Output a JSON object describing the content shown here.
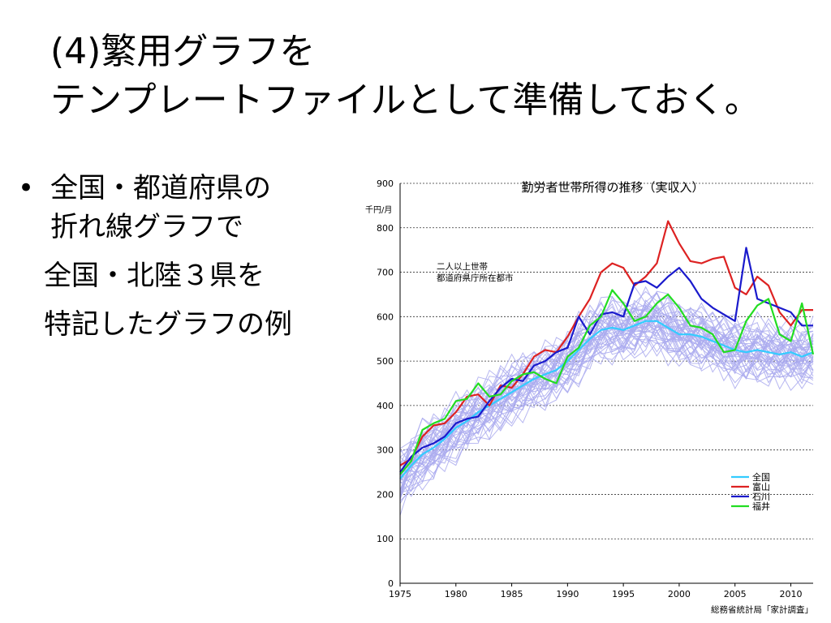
{
  "slide": {
    "title_line1": "(4)繁用グラフを",
    "title_line2": "テンプレートファイルとして準備しておく。",
    "bullet_symbol": "•",
    "bullet_line1": "全国・都道府県の",
    "bullet_line2": "折れ線グラフで",
    "sub_line1": "全国・北陸３県を",
    "sub_line2": "特記したグラフの例"
  },
  "chart_data": {
    "type": "line",
    "title": "勤労者世帯所得の推移（実収入）",
    "ylabel": "千円/月",
    "annotation_line1": "二人以上世帯",
    "annotation_line2": "都道府県庁所在都市",
    "source": "総務省統計局「家計調査」",
    "xlim": [
      1975,
      2012
    ],
    "ylim": [
      0,
      900
    ],
    "x_ticks": [
      1975,
      1980,
      1985,
      1990,
      1995,
      2000,
      2005,
      2010
    ],
    "y_ticks": [
      0,
      100,
      200,
      300,
      400,
      500,
      600,
      700,
      800,
      900
    ],
    "grid": "horizontal dotted",
    "legend_position": "bottom-right",
    "background_color": "#aaaaee",
    "background_series_count": 44,
    "x": [
      1975,
      1976,
      1977,
      1978,
      1979,
      1980,
      1981,
      1982,
      1983,
      1984,
      1985,
      1986,
      1987,
      1988,
      1989,
      1990,
      1991,
      1992,
      1993,
      1994,
      1995,
      1996,
      1997,
      1998,
      1999,
      2000,
      2001,
      2002,
      2003,
      2004,
      2005,
      2006,
      2007,
      2008,
      2009,
      2010,
      2011,
      2012
    ],
    "series": [
      {
        "name": "全国",
        "color": "#33ccff",
        "values": [
          235,
          265,
          290,
          305,
          325,
          350,
          365,
          385,
          400,
          415,
          430,
          445,
          460,
          470,
          480,
          500,
          525,
          550,
          570,
          575,
          570,
          580,
          590,
          590,
          575,
          560,
          560,
          555,
          545,
          535,
          525,
          520,
          525,
          520,
          515,
          520,
          510,
          520
        ]
      },
      {
        "name": "富山",
        "color": "#dd2222",
        "values": [
          265,
          280,
          330,
          355,
          360,
          385,
          420,
          425,
          400,
          445,
          440,
          470,
          510,
          525,
          520,
          555,
          600,
          640,
          700,
          720,
          710,
          670,
          690,
          720,
          815,
          765,
          725,
          720,
          730,
          735,
          665,
          650,
          690,
          670,
          610,
          580,
          615,
          615
        ]
      },
      {
        "name": "石川",
        "color": "#1a1acc",
        "values": [
          250,
          285,
          305,
          315,
          330,
          360,
          370,
          375,
          410,
          440,
          460,
          455,
          490,
          500,
          520,
          530,
          600,
          560,
          605,
          610,
          600,
          675,
          680,
          665,
          690,
          710,
          680,
          640,
          620,
          605,
          590,
          755,
          640,
          630,
          620,
          610,
          580,
          580
        ]
      },
      {
        "name": "福井",
        "color": "#22dd22",
        "values": [
          245,
          275,
          345,
          360,
          370,
          410,
          415,
          450,
          420,
          425,
          455,
          470,
          475,
          460,
          450,
          510,
          530,
          580,
          600,
          660,
          630,
          590,
          600,
          630,
          650,
          620,
          580,
          575,
          560,
          520,
          525,
          590,
          625,
          640,
          560,
          545,
          630,
          515
        ]
      }
    ]
  }
}
